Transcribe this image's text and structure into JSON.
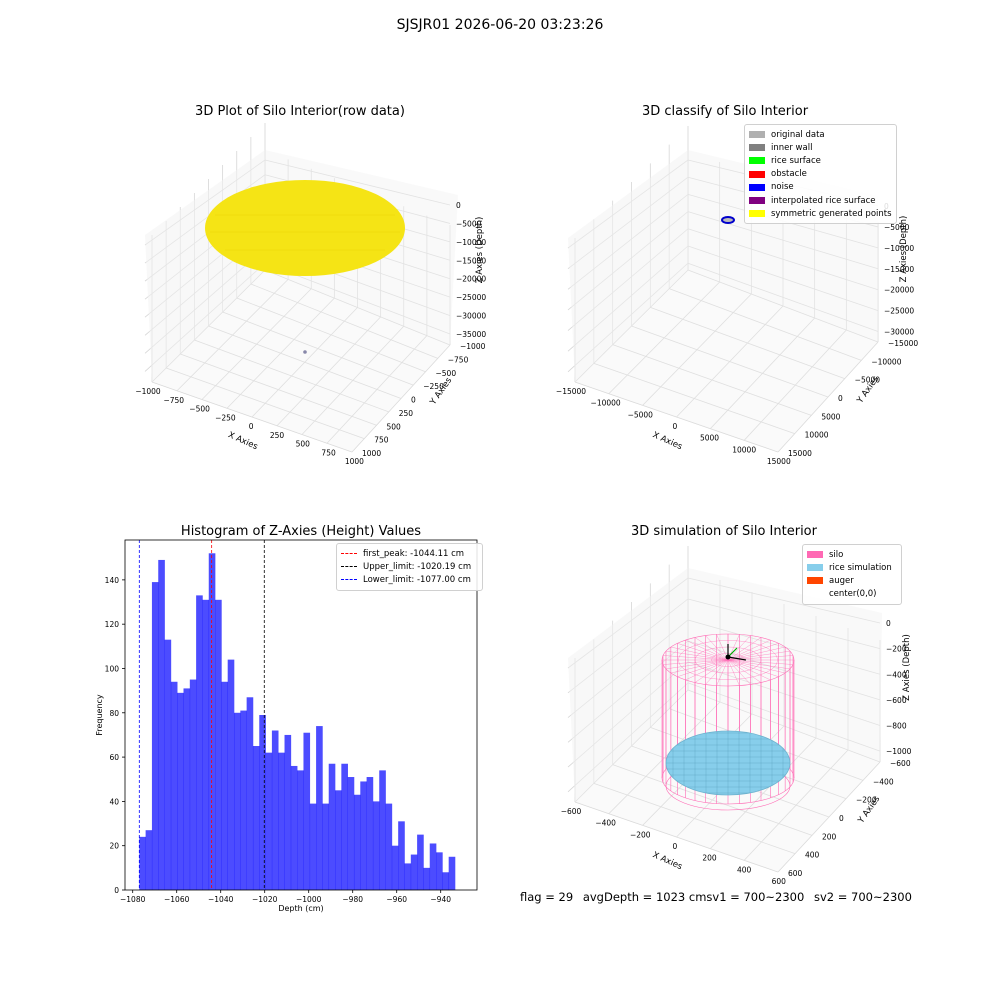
{
  "suptitle": "SJSJR01 2026-06-20 03:23:26",
  "footer": {
    "flag": "flag = 29",
    "avg": "avgDepth = 1023 cmsv1 = 700~2300",
    "sv2": "sv2 = 700~2300"
  },
  "chart_data": [
    {
      "type": "scatter3d",
      "title": "3D Plot of Silo Interior(row data)",
      "xlabel": "X Axies",
      "ylabel": "Y Axies",
      "zlabel": "Z Axies (Depth)",
      "xticks": [
        "−1000",
        "−750",
        "−500",
        "−250",
        "0",
        "250",
        "500",
        "750",
        "1000"
      ],
      "yticks": [
        "−1000",
        "−750",
        "−500",
        "−250",
        "0",
        "250",
        "500",
        "750",
        "1000"
      ],
      "zticks": [
        "0",
        "−5000",
        "−10000",
        "−15000",
        "−20000",
        "−25000",
        "−30000",
        "−35000"
      ],
      "points": "yellow disk of points near depth 0 spanning X and Y approximately −1000 to 1000"
    },
    {
      "type": "scatter3d",
      "title": "3D classify of Silo Interior",
      "xlabel": "X Axies",
      "ylabel": "Y Axies",
      "zlabel": "Z Axies (Depth)",
      "xticks": [
        "−15000",
        "−10000",
        "−5000",
        "0",
        "5000",
        "10000",
        "15000"
      ],
      "yticks": [
        "−15000",
        "−10000",
        "−5000",
        "0",
        "5000",
        "10000",
        "15000"
      ],
      "zticks": [
        "0",
        "−5000",
        "−10000",
        "−15000",
        "−20000",
        "−25000",
        "−30000"
      ],
      "legend": [
        {
          "label": "original data",
          "color": "#b0b0b0"
        },
        {
          "label": "inner wall",
          "color": "#808080"
        },
        {
          "label": "rice surface",
          "color": "#00ff00"
        },
        {
          "label": "obstacle",
          "color": "#ff0000"
        },
        {
          "label": "noise",
          "color": "#0000ff"
        },
        {
          "label": "interpolated rice surface",
          "color": "#800080"
        },
        {
          "label": "symmetric generated points",
          "color": "#ffff00"
        }
      ]
    },
    {
      "type": "bar",
      "title": "Histogram of Z-Axies (Height) Values",
      "xlabel": "Depth (cm)",
      "ylabel": "Frequency",
      "xlim": [
        -1083.5,
        -923.5
      ],
      "ylim": [
        0,
        158
      ],
      "xticks": [
        -1080,
        -1060,
        -1040,
        -1020,
        -1000,
        -980,
        -960,
        -940
      ],
      "xtick_labels": [
        "−1080",
        "−1060",
        "−1040",
        "−1020",
        "−1000",
        "−980",
        "−960",
        "−940"
      ],
      "yticks": [
        0,
        20,
        40,
        60,
        80,
        100,
        120,
        140
      ],
      "bin_start": -1077.0,
      "bin_width": 2.87,
      "values": [
        24,
        27,
        139,
        149,
        113,
        94,
        89,
        91,
        95,
        133,
        131,
        152,
        131,
        94,
        104,
        80,
        81,
        87,
        65,
        79,
        62,
        72,
        62,
        70,
        56,
        54,
        71,
        39,
        74,
        39,
        57,
        45,
        57,
        51,
        43,
        49,
        51,
        40,
        54,
        39,
        20,
        31,
        12,
        16,
        25,
        10,
        21,
        17,
        8,
        15
      ],
      "color": "#0000ff",
      "vlines": [
        {
          "label": "first_peak: -1044.11 cm",
          "x": -1044.11,
          "color": "#ff0000"
        },
        {
          "label": "Upper_limit: -1020.19 cm",
          "x": -1020.19,
          "color": "#000000"
        },
        {
          "label": "Lower_limit: -1077.00 cm",
          "x": -1077.0,
          "color": "#0000ff"
        }
      ]
    },
    {
      "type": "surface3d",
      "title": "3D simulation of Silo Interior",
      "xlabel": "X Axies",
      "ylabel": "Y Axies",
      "zlabel": "Z Axies (Depth)",
      "xticks": [
        "−600",
        "−400",
        "−200",
        "0",
        "200",
        "400",
        "600"
      ],
      "yticks": [
        "−600",
        "−400",
        "−200",
        "0",
        "200",
        "400",
        "600"
      ],
      "zticks": [
        "0",
        "−200",
        "−400",
        "−600",
        "−800",
        "−1000"
      ],
      "legend": [
        {
          "label": "silo",
          "color": "#ff69b4"
        },
        {
          "label": "rice simulation",
          "color": "#87ceeb"
        },
        {
          "label": "auger",
          "color": "#ff4500"
        },
        {
          "label": "center(0,0)",
          "color": ""
        }
      ]
    }
  ]
}
